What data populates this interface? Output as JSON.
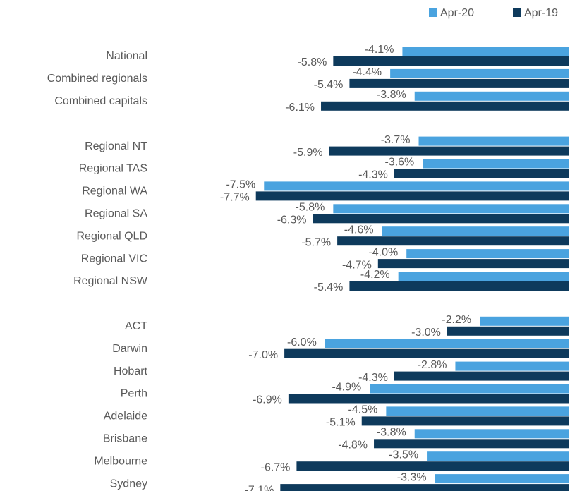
{
  "chart_data": {
    "type": "barh",
    "categories": [
      "National",
      "Combined regionals",
      "Combined capitals",
      null,
      "Regional NT",
      "Regional TAS",
      "Regional WA",
      "Regional SA",
      "Regional QLD",
      "Regional VIC",
      "Regional NSW",
      null,
      "ACT",
      "Darwin",
      "Hobart",
      "Perth",
      "Adelaide",
      "Brisbane",
      "Melbourne",
      "Sydney"
    ],
    "series": [
      {
        "name": "Apr-20",
        "color": "#4aa3df",
        "values": [
          -4.1,
          -4.4,
          -3.8,
          null,
          -3.7,
          -3.6,
          -7.5,
          -5.8,
          -4.6,
          -4.0,
          -4.2,
          null,
          -2.2,
          -6.0,
          -2.8,
          -4.9,
          -4.5,
          -3.8,
          -3.5,
          -3.3
        ],
        "value_labels": [
          "-4.1%",
          "-4.4%",
          "-3.8%",
          null,
          "-3.7%",
          "-3.6%",
          "-7.5%",
          "-5.8%",
          "-4.6%",
          "-4.0%",
          "-4.2%",
          null,
          "-2.2%",
          "-6.0%",
          "-2.8%",
          "-4.9%",
          "-4.5%",
          "-3.8%",
          "-3.5%",
          "-3.3%"
        ]
      },
      {
        "name": "Apr-19",
        "color": "#0e3a5c",
        "values": [
          -5.8,
          -5.4,
          -6.1,
          null,
          -5.9,
          -4.3,
          -7.7,
          -6.3,
          -5.7,
          -4.7,
          -5.4,
          null,
          -3.0,
          -7.0,
          -4.3,
          -6.9,
          -5.1,
          -4.8,
          -6.7,
          -7.1
        ],
        "value_labels": [
          "-5.8%",
          "-5.4%",
          "-6.1%",
          null,
          "-5.9%",
          "-4.3%",
          "-7.7%",
          "-6.3%",
          "-5.7%",
          "-4.7%",
          "-5.4%",
          null,
          "-3.0%",
          "-7.0%",
          "-4.3%",
          "-6.9%",
          "-5.1%",
          "-4.8%",
          "-6.7%",
          "-7.1%"
        ]
      }
    ],
    "xlim": [
      -8,
      0
    ],
    "legend": "top-right",
    "grid": false
  }
}
